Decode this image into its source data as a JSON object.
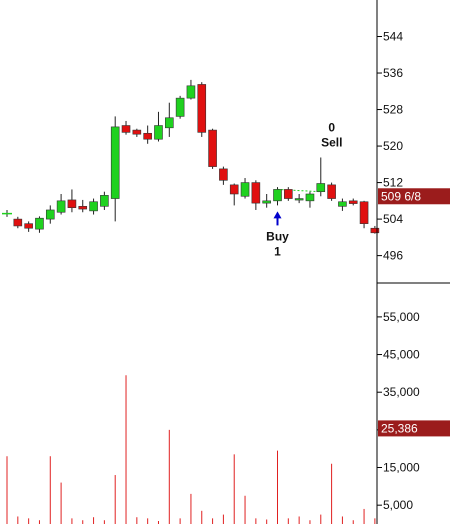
{
  "chart_data": [
    {
      "type": "candlestick",
      "panel": "price",
      "y_axis_side": "right",
      "ylim": [
        490,
        552
      ],
      "yticks": [
        {
          "value": 544,
          "label": "544"
        },
        {
          "value": 536,
          "label": "536"
        },
        {
          "value": 528,
          "label": "528"
        },
        {
          "value": 520,
          "label": "520"
        },
        {
          "value": 512,
          "label": "512"
        },
        {
          "value": 504,
          "label": "504"
        },
        {
          "value": 496,
          "label": "496"
        }
      ],
      "last_price": {
        "value": 509,
        "label": "509 6/8",
        "color": "#9b1c1c"
      },
      "up_color": "#1fd11f",
      "down_color": "#e01010",
      "candles": [
        {
          "open": 505.0,
          "high": 506.0,
          "low": 504.5,
          "close": 505.2
        },
        {
          "open": 504.0,
          "high": 504.5,
          "low": 502.0,
          "close": 502.5
        },
        {
          "open": 503.0,
          "high": 503.5,
          "low": 501.2,
          "close": 502.0
        },
        {
          "open": 501.8,
          "high": 504.6,
          "low": 501.0,
          "close": 504.2
        },
        {
          "open": 504.0,
          "high": 507.0,
          "low": 503.0,
          "close": 506.0
        },
        {
          "open": 505.5,
          "high": 509.5,
          "low": 505.0,
          "close": 508.0
        },
        {
          "open": 508.2,
          "high": 510.5,
          "low": 505.5,
          "close": 506.5
        },
        {
          "open": 506.8,
          "high": 508.2,
          "low": 505.5,
          "close": 506.2
        },
        {
          "open": 505.8,
          "high": 508.5,
          "low": 505.0,
          "close": 507.8
        },
        {
          "open": 506.8,
          "high": 510.0,
          "low": 506.0,
          "close": 509.2
        },
        {
          "open": 508.5,
          "high": 526.5,
          "low": 503.5,
          "close": 524.2
        },
        {
          "open": 524.5,
          "high": 525.5,
          "low": 522.5,
          "close": 523.0
        },
        {
          "open": 523.5,
          "high": 523.8,
          "low": 522.0,
          "close": 522.6
        },
        {
          "open": 522.8,
          "high": 524.5,
          "low": 520.5,
          "close": 521.5
        },
        {
          "open": 521.5,
          "high": 527.5,
          "low": 521.0,
          "close": 524.5
        },
        {
          "open": 524.0,
          "high": 529.5,
          "low": 522.0,
          "close": 526.2
        },
        {
          "open": 526.5,
          "high": 531.0,
          "low": 526.0,
          "close": 530.5
        },
        {
          "open": 530.5,
          "high": 534.5,
          "low": 530.2,
          "close": 533.2
        },
        {
          "open": 533.5,
          "high": 534.0,
          "low": 522.0,
          "close": 523.0
        },
        {
          "open": 523.5,
          "high": 523.8,
          "low": 515.0,
          "close": 515.5
        },
        {
          "open": 515.0,
          "high": 515.5,
          "low": 511.5,
          "close": 512.5
        },
        {
          "open": 511.5,
          "high": 511.8,
          "low": 507.0,
          "close": 509.5
        },
        {
          "open": 509.0,
          "high": 513.0,
          "low": 508.5,
          "close": 512.0
        },
        {
          "open": 512.0,
          "high": 512.5,
          "low": 506.0,
          "close": 507.5
        },
        {
          "open": 507.5,
          "high": 509.5,
          "low": 506.5,
          "close": 508.0
        },
        {
          "open": 508.0,
          "high": 511.0,
          "low": 507.0,
          "close": 510.5
        },
        {
          "open": 510.5,
          "high": 511.0,
          "low": 508.0,
          "close": 508.5
        },
        {
          "open": 508.5,
          "high": 509.5,
          "low": 507.5,
          "close": 508.5
        },
        {
          "open": 508.0,
          "high": 510.0,
          "low": 506.5,
          "close": 509.5
        },
        {
          "open": 510.0,
          "high": 517.5,
          "low": 509.0,
          "close": 511.8
        },
        {
          "open": 511.5,
          "high": 512.0,
          "low": 508.0,
          "close": 508.5
        },
        {
          "open": 506.8,
          "high": 508.5,
          "low": 505.8,
          "close": 507.8
        },
        {
          "open": 508.0,
          "high": 508.5,
          "low": 507.0,
          "close": 507.4
        },
        {
          "open": 507.8,
          "high": 508.0,
          "low": 502.0,
          "close": 503.0
        },
        {
          "open": 502.0,
          "high": 502.5,
          "low": 500.8,
          "close": 501.0
        }
      ],
      "markers": [
        {
          "candle": 25,
          "lines": [
            "Buy",
            "1"
          ],
          "arrow": "up",
          "arrow_color": "#0000cc",
          "position": "below"
        },
        {
          "candle": 29,
          "lines": [
            "0",
            "Sell"
          ],
          "position": "above"
        }
      ],
      "trade_line": {
        "from_candle": 25,
        "to_candle": 29,
        "color": "#1fd11f"
      }
    },
    {
      "type": "bar",
      "panel": "volume",
      "y_axis_side": "right",
      "ylim": [
        0,
        64000
      ],
      "yticks": [
        {
          "value": 55000,
          "label": "55,000"
        },
        {
          "value": 45000,
          "label": "45,000"
        },
        {
          "value": 35000,
          "label": "35,000"
        },
        {
          "value": 25000,
          "label": "25,000"
        },
        {
          "value": 15000,
          "label": "15,000"
        },
        {
          "value": 5000,
          "label": "5,000"
        }
      ],
      "last_volume": {
        "value": 25386,
        "label": "25,386",
        "color": "#9b1c1c"
      },
      "bar_color": "#e02020",
      "values": [
        18000,
        2000,
        1500,
        1000,
        18000,
        11000,
        1500,
        1000,
        1800,
        1000,
        13000,
        39500,
        1800,
        1500,
        800,
        25000,
        1500,
        8000,
        3500,
        1500,
        2500,
        18500,
        7500,
        1500,
        1200,
        19500,
        1500,
        2000,
        1000,
        2500,
        16000,
        2000,
        1000,
        4000,
        1500
      ]
    }
  ]
}
